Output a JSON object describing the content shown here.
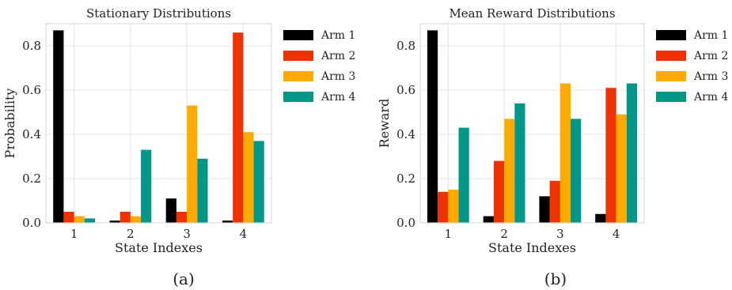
{
  "chart_data": [
    {
      "type": "bar",
      "title": "Stationary Distributions",
      "xlabel": "State Indexes",
      "ylabel": "Probability",
      "caption": "(a)",
      "categories": [
        "1",
        "2",
        "3",
        "4"
      ],
      "ylim": [
        0,
        0.9
      ],
      "yticks": [
        "0.0",
        "0.2",
        "0.4",
        "0.6",
        "0.8"
      ],
      "grid": true,
      "legend_position": "outside-right",
      "series": [
        {
          "name": "Arm 1",
          "color": "#000000",
          "values": [
            0.87,
            0.01,
            0.11,
            0.01
          ]
        },
        {
          "name": "Arm 2",
          "color": "#ee3300",
          "values": [
            0.05,
            0.05,
            0.05,
            0.86
          ]
        },
        {
          "name": "Arm 3",
          "color": "#ffaa00",
          "values": [
            0.03,
            0.03,
            0.53,
            0.41
          ]
        },
        {
          "name": "Arm 4",
          "color": "#009688",
          "values": [
            0.02,
            0.33,
            0.29,
            0.37
          ]
        }
      ]
    },
    {
      "type": "bar",
      "title": "Mean Reward Distributions",
      "xlabel": "State Indexes",
      "ylabel": "Reward",
      "caption": "(b)",
      "categories": [
        "1",
        "2",
        "3",
        "4"
      ],
      "ylim": [
        0,
        0.9
      ],
      "yticks": [
        "0.0",
        "0.2",
        "0.4",
        "0.6",
        "0.8"
      ],
      "grid": true,
      "legend_position": "outside-right",
      "series": [
        {
          "name": "Arm 1",
          "color": "#000000",
          "values": [
            0.87,
            0.03,
            0.12,
            0.04
          ]
        },
        {
          "name": "Arm 2",
          "color": "#ee3300",
          "values": [
            0.14,
            0.28,
            0.19,
            0.61
          ]
        },
        {
          "name": "Arm 3",
          "color": "#ffaa00",
          "values": [
            0.15,
            0.47,
            0.63,
            0.49
          ]
        },
        {
          "name": "Arm 4",
          "color": "#009688",
          "values": [
            0.43,
            0.54,
            0.47,
            0.63
          ]
        }
      ]
    }
  ]
}
